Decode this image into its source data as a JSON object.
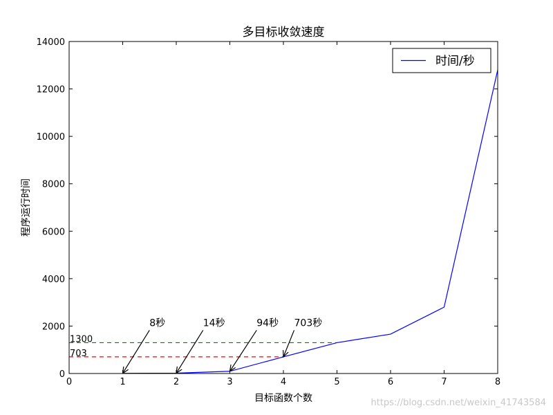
{
  "chart_data": {
    "type": "line",
    "title": "多目标收敛速度",
    "xlabel": "目标函数个数",
    "ylabel": "程序运行时间",
    "xlim": [
      0,
      8
    ],
    "ylim": [
      0,
      14000
    ],
    "xticks": [
      "0",
      "1",
      "2",
      "3",
      "4",
      "5",
      "6",
      "7",
      "8"
    ],
    "yticks": [
      "0",
      "2000",
      "4000",
      "6000",
      "8000",
      "10000",
      "12000",
      "14000"
    ],
    "series": [
      {
        "name": "时间/秒",
        "color": "#0000ff",
        "x": [
          1,
          2,
          3,
          4,
          5,
          6,
          7,
          8
        ],
        "y": [
          8,
          14,
          94,
          703,
          1300,
          1660,
          2800,
          12800
        ]
      }
    ],
    "reference_lines": [
      {
        "label": "1300",
        "y": 1300,
        "x_end": 5,
        "color": "#008000"
      },
      {
        "label": "703",
        "y": 703,
        "x_end": 4,
        "color": "#ff0000"
      }
    ],
    "annotations": [
      {
        "text": "8秒",
        "point": [
          1,
          8
        ],
        "text_pos": [
          1.5,
          2000
        ]
      },
      {
        "text": "14秒",
        "point": [
          2,
          14
        ],
        "text_pos": [
          2.5,
          2000
        ]
      },
      {
        "text": "94秒",
        "point": [
          3,
          94
        ],
        "text_pos": [
          3.5,
          2000
        ]
      },
      {
        "text": "703秒",
        "point": [
          4,
          703
        ],
        "text_pos": [
          4.2,
          2000
        ]
      }
    ],
    "grid": false,
    "legend": "top-right"
  },
  "watermark": "https://blog.csdn.net/weixin_41743584"
}
